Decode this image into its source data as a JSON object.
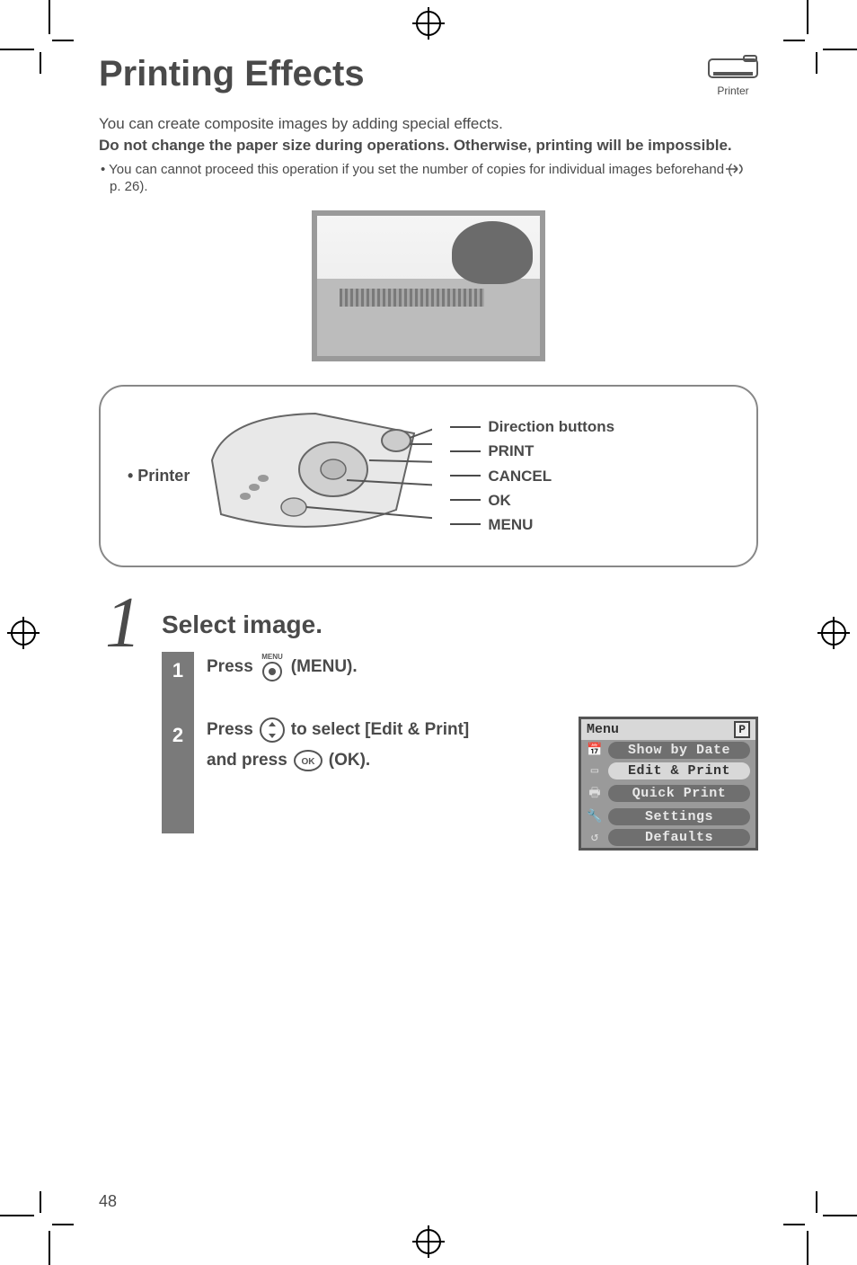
{
  "title": "Printing Effects",
  "printer_icon_label": "Printer",
  "intro_line1": "You can create composite images by adding special effects.",
  "intro_bold": "Do not change the paper size during operations. Otherwise, printing will be impossible.",
  "bullet_text_a": "You can cannot proceed this operation if you set the number of copies for individual images beforehand (",
  "bullet_text_b": " p. 26).",
  "controls": {
    "printer_label": "• Printer",
    "labels": [
      "Direction buttons",
      "PRINT",
      "CANCEL",
      "OK",
      "MENU"
    ]
  },
  "step": {
    "number": "1",
    "title": "Select image.",
    "sub1_a": "Press ",
    "sub1_b": " (MENU).",
    "menu_small": "MENU",
    "sub2_a": "Press ",
    "sub2_b": " to select [Edit & Print]",
    "sub2_c": "and press ",
    "sub2_d": " (OK).",
    "ok_small": "OK"
  },
  "menu_screen": {
    "header": "Menu",
    "badge": "P",
    "items": [
      {
        "icon": "📅",
        "label": "Show by Date",
        "selected": false
      },
      {
        "icon": "▭",
        "label": "Edit & Print",
        "selected": true
      },
      {
        "icon": "🖶",
        "label": "Quick Print",
        "selected": false
      },
      {
        "icon": "🔧",
        "label": "Settings",
        "selected": false
      },
      {
        "icon": "↺",
        "label": "Defaults",
        "selected": false
      }
    ]
  },
  "page_number": "48"
}
